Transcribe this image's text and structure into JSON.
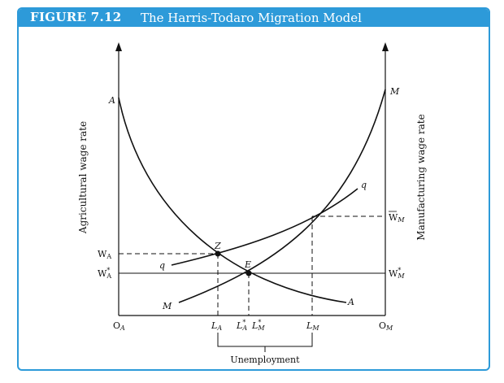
{
  "figure": {
    "label": "FIGURE 7.12",
    "title": "The Harris-Todaro Migration Model"
  },
  "axes": {
    "left_axis_label": "Agricultural wage rate",
    "right_axis_label": "Manufacturing wage rate"
  },
  "labels": {
    "origin_a": "O",
    "origin_a_sub": "A",
    "origin_m": "O",
    "origin_m_sub": "M",
    "la": "L",
    "la_sub": "A",
    "la_star": "L",
    "la_star_sub": "A",
    "lm_star": "L",
    "lm_star_sub": "M",
    "lm": "L",
    "lm_sub": "M",
    "star": "*",
    "wa": "W",
    "wa_sub": "A",
    "wa_star": "W",
    "wa_star_sub": "A",
    "wm_bar": "W",
    "wm_bar_sub": "M",
    "wm_star": "W",
    "wm_star_sub": "M",
    "curve_a_top": "A",
    "curve_a_bottom": "A",
    "curve_m_top": "M",
    "curve_m_bottom": "M",
    "curve_q_top": "q",
    "curve_q_bottom": "q",
    "point_z": "Z",
    "point_e": "E",
    "unemployment": "Unemployment"
  },
  "colors": {
    "frame": "#2d9ad9",
    "ink": "#111111"
  }
}
